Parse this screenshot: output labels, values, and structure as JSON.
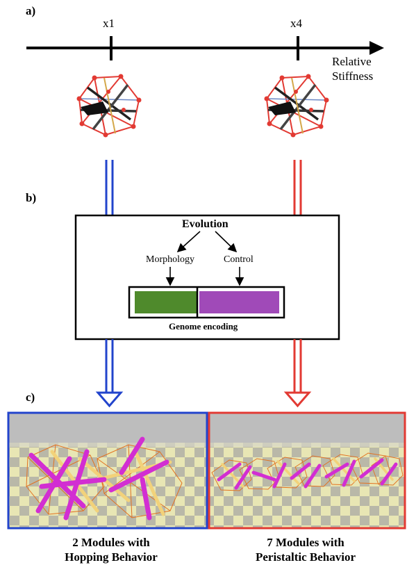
{
  "panels": {
    "a": "a)",
    "b": "b)",
    "c": "c)"
  },
  "stiffness": {
    "left_tick": "x1",
    "right_tick": "x4",
    "axis_label_line1": "Relative",
    "axis_label_line2": "Stiffness"
  },
  "evolution": {
    "title": "Evolution",
    "morphology": "Morphology",
    "control": "Control",
    "genome": "Genome encoding"
  },
  "colors": {
    "blue": "#2244cc",
    "red": "#e23a33",
    "genome_morphology": "#4f8a2c",
    "genome_control": "#a04ab8"
  },
  "captions": {
    "left_line1": "2 Modules with",
    "left_line2": "Hopping Behavior",
    "right_line1": "7 Modules with",
    "right_line2": "Peristaltic Behavior"
  }
}
